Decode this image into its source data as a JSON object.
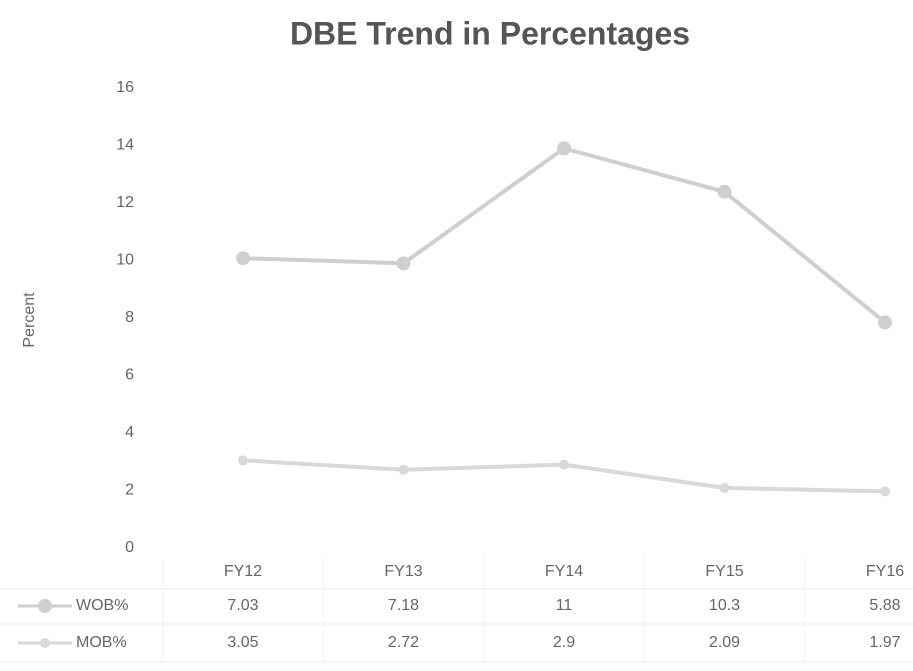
{
  "chart_data": {
    "type": "line",
    "stacked": true,
    "title": "DBE Trend in Percentages",
    "y_label": "Percent",
    "categories": [
      "FY12",
      "FY13",
      "FY14",
      "FY15",
      "FY16"
    ],
    "series": [
      {
        "name": "WOB%",
        "color": "#cfcfcf",
        "values": [
          7.03,
          7.18,
          11,
          10.3,
          5.88
        ]
      },
      {
        "name": "MOB%",
        "color": "#d9d9d9",
        "values": [
          3.05,
          2.72,
          2.9,
          2.09,
          1.97
        ]
      }
    ],
    "ylim": [
      0,
      16
    ],
    "yticks": [
      0,
      2,
      4,
      6,
      8,
      10,
      12,
      14,
      16
    ],
    "data_table": true
  }
}
